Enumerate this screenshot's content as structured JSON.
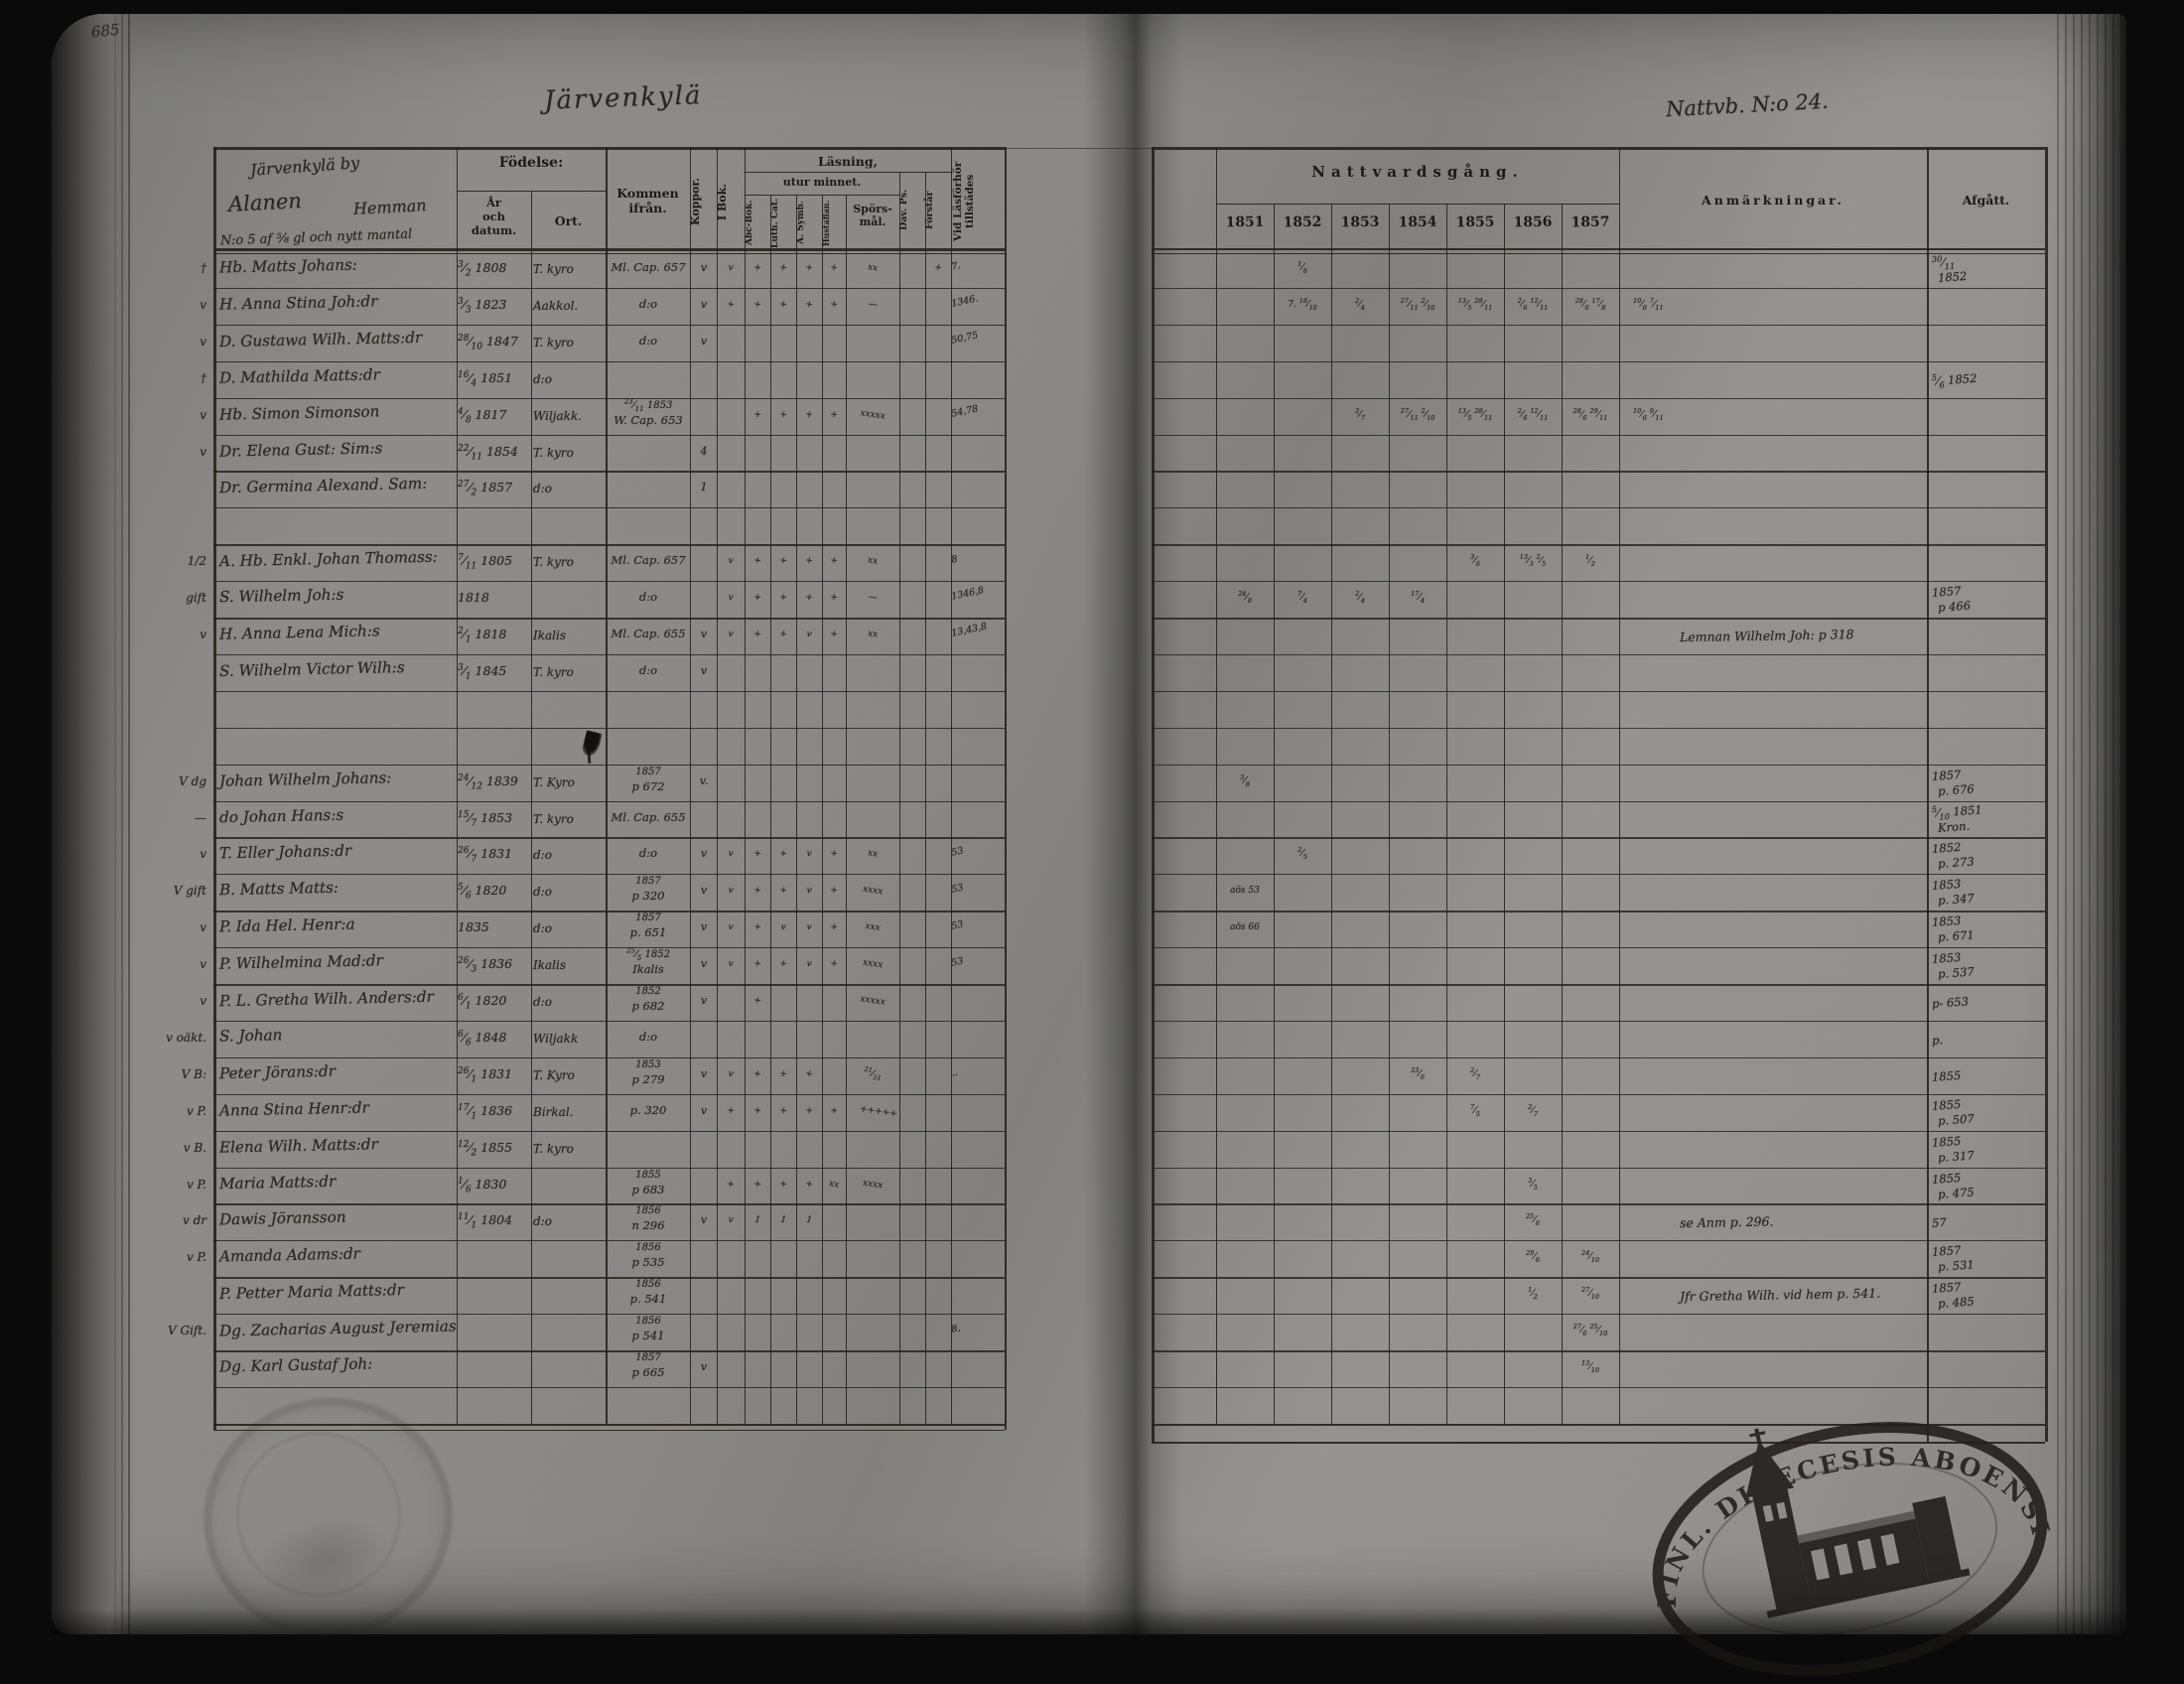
{
  "page": {
    "folio_number": "685"
  },
  "stamp": {
    "legend": "FINL. DIOECESIS ABOENSIS. MAGN."
  },
  "left_page": {
    "script_title": "Järvenkylä",
    "name_box": {
      "line1": "Järvenkylä by",
      "village": "Alanen",
      "hemman": "Hemman",
      "line3": "N:o 5 af ⅝ gl och nytt mantal"
    },
    "columns": {
      "fodelse": "Födelse:",
      "ar_och_datum": "År\noch\ndatum.",
      "ort": "Ort.",
      "kommen": "Kommen\nifrån.",
      "koppor": "Koppor.",
      "i_bok": "I Bok.",
      "lasning_line1": "Läsning,",
      "lasning_line2": "utur minnet.",
      "abc": "Abc-Bok.",
      "luth": "Luth. Cat.",
      "symb": "A. Symb.",
      "hust": "Hustaflan.",
      "sporsmal": "Spörs-\nmål.",
      "dav": "Dav. Ps.",
      "forstar": "Förstår",
      "vid": "Vid Läsförhör tillstädes"
    },
    "rows": [
      {
        "m": "†",
        "name": "Hb. Matts Johans:",
        "d": "3/2",
        "y": "1808",
        "ort": "T. kyro",
        "k": [
          "Ml. Cap. 657"
        ],
        "kop": "v",
        "rd": [
          "v",
          "+",
          "+",
          "+",
          "+",
          "xx",
          "",
          "+"
        ],
        "vid": "7."
      },
      {
        "m": "v",
        "name": "H. Anna Stina Joh:dr",
        "d": "3/3",
        "y": "1823",
        "ort": "Aakkol.",
        "k": [
          "d:o"
        ],
        "kop": "v",
        "rd": [
          "+",
          "+",
          "+",
          "+",
          "+",
          "—",
          "",
          ""
        ],
        "vid": "1346."
      },
      {
        "m": "v",
        "name": "D. Gustawa Wilh. Matts:dr",
        "d": "28/10",
        "y": "1847",
        "ort": "T. kyro",
        "k": [
          "d:o"
        ],
        "kop": "v",
        "rd": [],
        "vid": "50,75"
      },
      {
        "m": "†",
        "name": "D. Mathilda Matts:dr",
        "d": "16/4",
        "y": "1851",
        "ort": "d:o"
      },
      {
        "m": "v",
        "name": "Hb. Simon Simonson",
        "d": "4/8",
        "y": "1817",
        "ort": "Wiljakk.",
        "k": [
          "23/11 1853",
          "W. Cap. 653"
        ],
        "rd": [
          "",
          "+",
          "+",
          "+",
          "+",
          "xxxxx",
          "",
          ""
        ],
        "vid": "54,78"
      },
      {
        "m": "v",
        "name": "Dr. Elena Gust: Sim:s",
        "d": "22/11",
        "y": "1854",
        "ort": "T. kyro",
        "kop": "4"
      },
      {
        "name": "Dr. Germina Alexand. Sam:",
        "d": "27/2",
        "y": "1857",
        "ort": "d:o",
        "kop": "1"
      },
      {},
      {
        "m": "1/2",
        "name": "A. Hb. Enkl. Johan Thomass:",
        "d": "7/11",
        "y": "1805",
        "ort": "T. kyro",
        "k": [
          "Ml. Cap. 657"
        ],
        "rd": [
          "v",
          "+",
          "+",
          "+",
          "+",
          "xx",
          "",
          ""
        ],
        "vid": "8"
      },
      {
        "m": "gift",
        "name": "S. Wilhelm Joh:s",
        "y": "1818",
        "k": [
          "d:o"
        ],
        "rd": [
          "v",
          "+",
          "+",
          "+",
          "+",
          "—",
          "",
          ""
        ],
        "vid": "1346,8"
      },
      {
        "m": "v",
        "name": "H. Anna Lena Mich:s",
        "d": "2/1",
        "y": "1818",
        "ort": "Ikalis",
        "k": [
          "Ml. Cap. 655"
        ],
        "kop": "v",
        "rd": [
          "v",
          "+",
          "+",
          "v",
          "+",
          "xx",
          "",
          ""
        ],
        "vid": "13,43,8"
      },
      {
        "name": "S. Wilhelm Victor Wilh:s",
        "d": "3/1",
        "y": "1845",
        "ort": "T. kyro",
        "k": [
          "d:o"
        ],
        "kop": "v"
      },
      {},
      {
        "blot": true
      },
      {
        "m": "V dg",
        "name": "Johan Wilhelm Johans:",
        "d": "24/12",
        "y": "1839",
        "ort": "T. Kyro",
        "k": [
          "1857",
          "p 672"
        ],
        "kop": "v."
      },
      {
        "m": "—",
        "name": "do Johan Hans:s",
        "d": "15/7",
        "y": "1853",
        "ort": "T. kyro",
        "k": [
          "Ml. Cap. 655"
        ]
      },
      {
        "m": "v",
        "name": "T. Eller Johans:dr",
        "d": "26/7",
        "y": "1831",
        "ort": "d:o",
        "k": [
          "d:o"
        ],
        "kop": "v",
        "rd": [
          "v",
          "+",
          "+",
          "v",
          "+",
          "xx",
          "",
          ""
        ],
        "vid": "53"
      },
      {
        "m": "V gift",
        "name": "B. Matts Matts:",
        "d": "5/6",
        "y": "1820",
        "ort": "d:o",
        "k": [
          "1857",
          "p 320"
        ],
        "kop": "v",
        "rd": [
          "v",
          "+",
          "+",
          "v",
          "+",
          "xxxx",
          "",
          ""
        ],
        "vid": "53"
      },
      {
        "m": "v",
        "name": "P. Ida Hel. Henr:a",
        "y": "1835",
        "ort": "d:o",
        "k": [
          "1857",
          "p. 651"
        ],
        "kop": "v",
        "rd": [
          "v",
          "+",
          "v",
          "v",
          "+",
          "xxx",
          "",
          ""
        ],
        "vid": "53"
      },
      {
        "m": "v",
        "name": "P. Wilhelmina Mad:dr",
        "d": "26/3",
        "y": "1836",
        "ort": "Ikalis",
        "k": [
          "25/5 1852",
          "Ikalis"
        ],
        "kop": "v",
        "rd": [
          "v",
          "+",
          "+",
          "v",
          "+",
          "xxxx",
          "",
          ""
        ],
        "vid": "53"
      },
      {
        "m": "v",
        "name": "P. L. Gretha Wilh. Anders:dr",
        "d": "6/1",
        "y": "1820",
        "ort": "d:o",
        "k": [
          "1852",
          "p 682"
        ],
        "kop": "v",
        "rd": [
          "",
          "+",
          "",
          "",
          "",
          "xxxxx",
          "",
          ""
        ]
      },
      {
        "m": "v oäkt.",
        "name": "S. Johan",
        "d": "6/6",
        "y": "1848",
        "ort": "Wiljakk",
        "k": [
          "d:o"
        ]
      },
      {
        "m": "V B:",
        "name": "Peter Jörans:dr",
        "d": "26/1",
        "y": "1831",
        "ort": "T. Kyro",
        "k": [
          "1853",
          "p 279"
        ],
        "kop": "v",
        "rd": [
          "v",
          "+",
          "+",
          "+",
          "",
          "21/51",
          "",
          ""
        ],
        "vid": ".."
      },
      {
        "m": "v P.",
        "name": "Anna Stina Henr:dr",
        "d": "17/1",
        "y": "1836",
        "ort": "Birkal.",
        "k": [
          "p. 320"
        ],
        "kop": "v",
        "rd": [
          "+",
          "+",
          "+",
          "+",
          "+",
          "+++++",
          "",
          ""
        ]
      },
      {
        "m": "v B.",
        "name": "Elena Wilh. Matts:dr",
        "d": "12/2",
        "y": "1855",
        "ort": "T. kyro"
      },
      {
        "m": "v P.",
        "name": "Maria Matts:dr",
        "d": "1/6",
        "y": "1830",
        "k": [
          "1855",
          "p 683"
        ],
        "rd": [
          "+",
          "+",
          "+",
          "+",
          "xx",
          "xxxx",
          "",
          ""
        ]
      },
      {
        "m": "v dr",
        "name": "Dawis Jöransson",
        "d": "11/1",
        "y": "1804",
        "ort": "d:o",
        "k": [
          "1856",
          "n 296"
        ],
        "kop": "v",
        "rd": [
          "v",
          "1",
          "1",
          "1",
          "",
          "",
          "",
          ""
        ]
      },
      {
        "m": "v P.",
        "name": "Amanda Adams:dr",
        "k": [
          "1856",
          "p 535"
        ]
      },
      {
        "name": "P. Petter Maria Matts:dr",
        "k": [
          "1856",
          "p. 541"
        ]
      },
      {
        "m": "V Gift.",
        "name": "Dg. Zacharias August Jeremias",
        "k": [
          "1856",
          "p 541"
        ],
        "vid": "8,"
      },
      {
        "name": "Dg. Karl Gustaf Joh:",
        "k": [
          "1857",
          "p 665"
        ],
        "kop": "v"
      },
      {}
    ]
  },
  "right_page": {
    "script_title": "Nattvb. N:o 24.",
    "header": "Nattvardsgång.",
    "years": [
      "1851",
      "1852",
      "1853",
      "1854",
      "1855",
      "1856",
      "1857"
    ],
    "anmarkningar": "Anmärkningar.",
    "afgatt": "Afgått.",
    "rows": [
      {
        "cells": {
          "1852": "1/6"
        },
        "afg": [
          "30/11",
          "1852"
        ]
      },
      {
        "cells": {
          "1852": "7. 18/10",
          "1853": "2/4",
          "1854": "27/11 2/10",
          "1855": "13/5 28/11",
          "1856": "2/6 12/11",
          "1857": "28/6 17/8",
          "anm": "10/6 7/11"
        }
      },
      {},
      {
        "afg": [
          "5/6 1852"
        ]
      },
      {
        "cells": {
          "1853": "2/7",
          "1854": "27/11 2/10",
          "1855": "13/5 28/11",
          "1856": "2/6 12/11",
          "1857": "28/6 29/11",
          "anm": "10/6 9/11"
        }
      },
      {},
      {},
      {},
      {
        "cells": {
          "1855": "3/6",
          "1856": "13/3 2/5",
          "1857": "1/2"
        }
      },
      {
        "cells": {
          "1851": "24/8",
          "1852": "7/4",
          "1853": "2/4",
          "1854": "17/4"
        },
        "afg": [
          "1857",
          "p 466"
        ]
      },
      {
        "remark": "Lemnan Wilhelm Joh: p 318"
      },
      {},
      {},
      {},
      {
        "cells": {
          "1851": "3/8"
        },
        "afg": [
          "1857",
          "p. 676"
        ]
      },
      {
        "afg": [
          "5/10 1851",
          "Kron."
        ]
      },
      {
        "cells": {
          "1852": "2/5"
        },
        "afg": [
          "1852",
          "p. 273"
        ]
      },
      {
        "cells": {
          "1851": "aös 53"
        },
        "afg": [
          "1853",
          "p. 347"
        ]
      },
      {
        "cells": {
          "1851": "aös 66"
        },
        "afg": [
          "1853",
          "p. 671"
        ]
      },
      {
        "afg": [
          "1853",
          "p. 537"
        ]
      },
      {
        "afg": [
          "p- 653"
        ]
      },
      {
        "afg": [
          "p."
        ]
      },
      {
        "cells": {
          "1854": "23/6",
          "1855": "2/7"
        },
        "afg": [
          "1855"
        ]
      },
      {
        "cells": {
          "1855": "7/5",
          "1856": "2/7"
        },
        "afg": [
          "1855",
          "p. 507"
        ]
      },
      {
        "afg": [
          "1855",
          "p. 317"
        ]
      },
      {
        "cells": {
          "1856": "3/5"
        },
        "afg": [
          "1855",
          "p. 475"
        ]
      },
      {
        "cells": {
          "1856": "25/6"
        },
        "remark": "se Anm p. 296.",
        "afg": [
          "57"
        ]
      },
      {
        "cells": {
          "1856": "29/6",
          "1857": "24/10"
        },
        "afg": [
          "1857",
          "p. 531"
        ]
      },
      {
        "cells": {
          "1856": "1/2",
          "1857": "27/10"
        },
        "remark": "Jfr Gretha Wilh. vid hem p. 541.",
        "afg": [
          "1857",
          "p. 485"
        ]
      },
      {
        "cells": {
          "1857": "27/6 25/10"
        }
      },
      {
        "cells": {
          "1857": "13/10"
        }
      },
      {}
    ]
  }
}
